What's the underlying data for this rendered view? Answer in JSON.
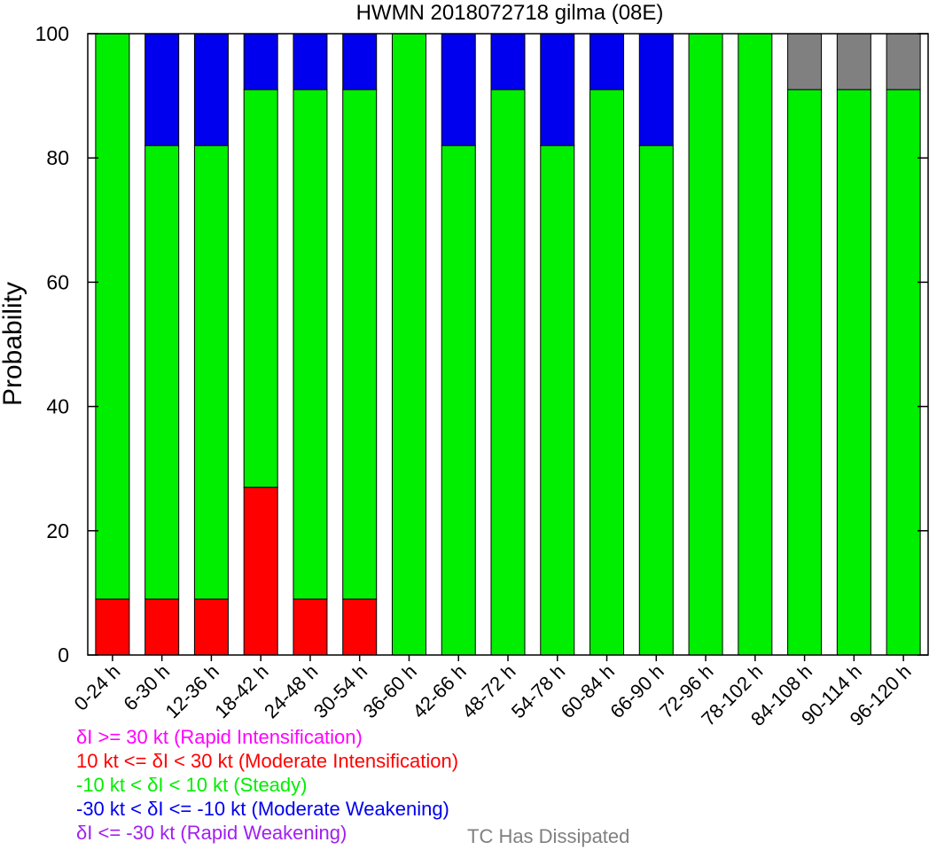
{
  "chart_data": {
    "type": "bar",
    "stacked": true,
    "title": "HWMN 2018072718 gilma (08E)",
    "xlabel": "",
    "ylabel": "Probability",
    "ylim": [
      0,
      100
    ],
    "yticks": [
      0,
      20,
      40,
      60,
      80,
      100
    ],
    "grid": false,
    "categories": [
      "0-24 h",
      "6-30 h",
      "12-36 h",
      "18-42 h",
      "24-48 h",
      "30-54 h",
      "36-60 h",
      "42-66 h",
      "48-72 h",
      "54-78 h",
      "60-84 h",
      "66-90 h",
      "72-96 h",
      "78-102 h",
      "84-108 h",
      "90-114 h",
      "96-120 h"
    ],
    "series": [
      {
        "name": "δI >= 30 kt (Rapid Intensification)",
        "color": "#ff00ff",
        "values": [
          0,
          0,
          0,
          0,
          0,
          0,
          0,
          0,
          0,
          0,
          0,
          0,
          0,
          0,
          0,
          0,
          0
        ]
      },
      {
        "name": "10 kt <= δI < 30 kt (Moderate Intensification)",
        "color": "#ff0000",
        "values": [
          9,
          9,
          9,
          27,
          9,
          9,
          0,
          0,
          0,
          0,
          0,
          0,
          0,
          0,
          0,
          0,
          0
        ]
      },
      {
        "name": "-10 kt < δI < 10 kt (Steady)",
        "color": "#00ee00",
        "values": [
          91,
          73,
          73,
          64,
          82,
          82,
          100,
          82,
          91,
          82,
          91,
          82,
          100,
          100,
          91,
          91,
          91
        ]
      },
      {
        "name": "-30 kt < δI <= -10 kt (Moderate Weakening)",
        "color": "#0000ee",
        "values": [
          0,
          18,
          18,
          9,
          9,
          9,
          0,
          18,
          9,
          18,
          9,
          18,
          0,
          0,
          0,
          0,
          0
        ]
      },
      {
        "name": "δI <= -30 kt (Rapid Weakening)",
        "color": "#a020f0",
        "values": [
          0,
          0,
          0,
          0,
          0,
          0,
          0,
          0,
          0,
          0,
          0,
          0,
          0,
          0,
          0,
          0,
          0
        ]
      },
      {
        "name": "TC Has Dissipated",
        "color": "#808080",
        "values": [
          0,
          0,
          0,
          0,
          0,
          0,
          0,
          0,
          0,
          0,
          0,
          0,
          0,
          0,
          9,
          9,
          9
        ]
      }
    ]
  }
}
